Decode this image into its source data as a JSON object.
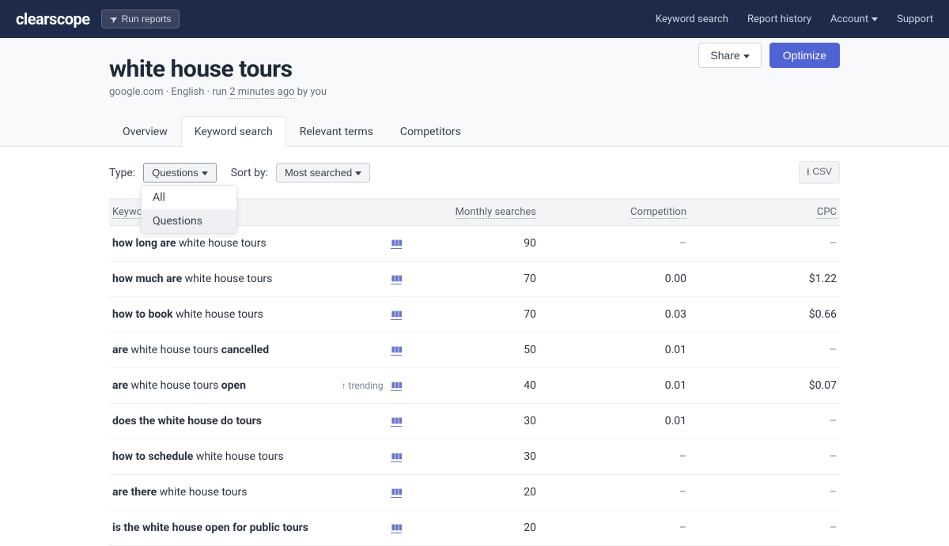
{
  "nav": {
    "logo": "clearscope",
    "run_reports": "Run reports",
    "links": {
      "keyword_search": "Keyword search",
      "report_history": "Report history",
      "account": "Account",
      "support": "Support"
    }
  },
  "header": {
    "title": "white house tours",
    "subtitle_prefix": "google.com · English · run ",
    "subtitle_time": "2 minutes ago",
    "subtitle_suffix": " by you",
    "share": "Share",
    "optimize": "Optimize"
  },
  "tabs": {
    "overview": "Overview",
    "keyword_search": "Keyword search",
    "relevant_terms": "Relevant terms",
    "competitors": "Competitors"
  },
  "filters": {
    "type_label": "Type:",
    "type_value": "Questions",
    "sort_label": "Sort by:",
    "sort_value": "Most searched",
    "csv": "CSV",
    "dropdown": {
      "all": "All",
      "questions": "Questions"
    }
  },
  "table": {
    "headers": {
      "keyword": "Keyword",
      "monthly": "Monthly searches",
      "competition": "Competition",
      "cpc": "CPC"
    },
    "trending_label": "trending",
    "rows": [
      {
        "pre": "how long are",
        "mid": " white house tours",
        "post": "",
        "trending": false,
        "monthly": "90",
        "competition": "–",
        "cpc": "–"
      },
      {
        "pre": "how much are",
        "mid": " white house tours",
        "post": "",
        "trending": false,
        "monthly": "70",
        "competition": "0.00",
        "cpc": "$1.22"
      },
      {
        "pre": "how to book",
        "mid": " white house tours",
        "post": "",
        "trending": false,
        "monthly": "70",
        "competition": "0.03",
        "cpc": "$0.66"
      },
      {
        "pre": "are",
        "mid": " white house tours ",
        "post": "cancelled",
        "trending": false,
        "monthly": "50",
        "competition": "0.01",
        "cpc": "–"
      },
      {
        "pre": "are",
        "mid": " white house tours ",
        "post": "open",
        "trending": true,
        "monthly": "40",
        "competition": "0.01",
        "cpc": "$0.07"
      },
      {
        "pre": "does the white house do tours",
        "mid": "",
        "post": "",
        "trending": false,
        "monthly": "30",
        "competition": "0.01",
        "cpc": "–"
      },
      {
        "pre": "how to schedule",
        "mid": " white house tours",
        "post": "",
        "trending": false,
        "monthly": "30",
        "competition": "–",
        "cpc": "–"
      },
      {
        "pre": "are there",
        "mid": " white house tours",
        "post": "",
        "trending": false,
        "monthly": "20",
        "competition": "–",
        "cpc": "–"
      },
      {
        "pre": "is the white house open for public tours",
        "mid": "",
        "post": "",
        "trending": false,
        "monthly": "20",
        "competition": "–",
        "cpc": "–"
      }
    ]
  },
  "colors": {
    "navbar_bg": "#1e2a4a",
    "primary_btn": "#4f63d2",
    "page_bg": "#f8f9fa",
    "text_primary": "#1f2937",
    "text_secondary": "#657080",
    "border": "#e5e7eb"
  }
}
